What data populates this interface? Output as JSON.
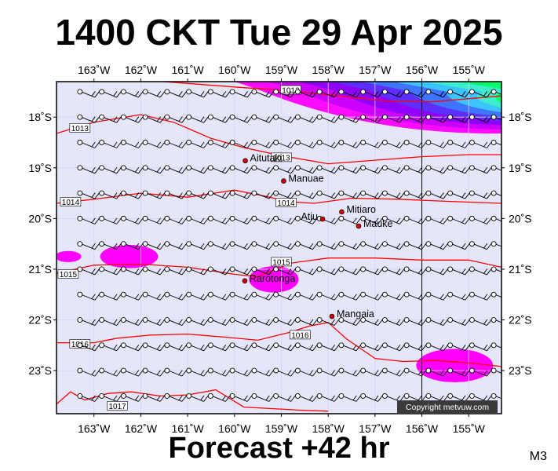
{
  "title": "1400 CKT Tue 29 Apr 2025",
  "footer": "Forecast +42 hr",
  "model_code": "M3",
  "copyright": "Copyright metvuw.com",
  "map": {
    "lon_min": -163.8,
    "lon_max": -154.3,
    "lat_min": -23.85,
    "lat_max": -17.3,
    "lon_ticks": [
      {
        "value": -163,
        "label": "163˚W"
      },
      {
        "value": -162,
        "label": "162˚W"
      },
      {
        "value": -161,
        "label": "161˚W"
      },
      {
        "value": -160,
        "label": "160˚W"
      },
      {
        "value": -159,
        "label": "159˚W"
      },
      {
        "value": -158,
        "label": "158˚W"
      },
      {
        "value": -157,
        "label": "157˚W"
      },
      {
        "value": -156,
        "label": "156˚W"
      },
      {
        "value": -155,
        "label": "155˚W"
      }
    ],
    "lat_ticks": [
      {
        "value": -18,
        "label": "18˚S"
      },
      {
        "value": -19,
        "label": "19˚S"
      },
      {
        "value": -20,
        "label": "20˚S"
      },
      {
        "value": -21,
        "label": "21˚S"
      },
      {
        "value": -22,
        "label": "22˚S"
      },
      {
        "value": -23,
        "label": "23˚S"
      }
    ],
    "reference_meridian": -156,
    "background_color": "#e6e6fa",
    "isobar_color": "#ff0000",
    "rain_color": "#ff00ff"
  },
  "places": [
    {
      "name": "Aitutaki",
      "lon": -159.77,
      "lat": -18.86,
      "label_side": "right"
    },
    {
      "name": "Manuae",
      "lon": -158.95,
      "lat": -19.26,
      "label_side": "right"
    },
    {
      "name": "Mitiaro",
      "lon": -157.71,
      "lat": -19.87,
      "label_side": "right"
    },
    {
      "name": "Atiu",
      "lon": -158.12,
      "lat": -20.01,
      "label_side": "left"
    },
    {
      "name": "Mauke",
      "lon": -157.35,
      "lat": -20.15,
      "label_side": "right"
    },
    {
      "name": "Rarotonga",
      "lon": -159.78,
      "lat": -21.23,
      "label_side": "right"
    },
    {
      "name": "Mangaia",
      "lon": -157.92,
      "lat": -21.93,
      "label_side": "right"
    }
  ],
  "isobars": [
    {
      "label": "1012",
      "label_at": [
        -158.8,
        -17.47
      ],
      "points": [
        [
          -161.8,
          -17.28
        ],
        [
          -160.8,
          -17.35
        ],
        [
          -159.8,
          -17.42
        ],
        [
          -158.8,
          -17.48
        ],
        [
          -157.8,
          -17.58
        ],
        [
          -156.8,
          -17.68
        ],
        [
          -155.8,
          -17.7
        ],
        [
          -154.8,
          -17.62
        ],
        [
          -154.3,
          -17.58
        ]
      ]
    },
    {
      "label": "1013",
      "label_at": [
        -163.3,
        -18.22
      ],
      "points": [
        [
          -163.8,
          -18.32
        ],
        [
          -163.0,
          -18.1
        ],
        [
          -162.0,
          -17.95
        ],
        [
          -161.3,
          -18.1
        ],
        [
          -160.5,
          -18.42
        ],
        [
          -159.8,
          -18.6
        ],
        [
          -159.0,
          -18.76
        ],
        [
          -158.0,
          -18.92
        ],
        [
          -157.0,
          -18.85
        ],
        [
          -156.0,
          -18.78
        ],
        [
          -155.0,
          -18.74
        ],
        [
          -154.3,
          -18.74
        ]
      ]
    },
    {
      "label": "1013",
      "label_at": [
        -159.0,
        -18.8
      ],
      "points": []
    },
    {
      "label": "1014",
      "label_at": [
        -163.5,
        -19.68
      ],
      "points": [
        [
          -163.8,
          -19.7
        ],
        [
          -163.0,
          -19.62
        ],
        [
          -162.0,
          -19.5
        ],
        [
          -161.0,
          -19.58
        ],
        [
          -160.0,
          -19.44
        ],
        [
          -159.5,
          -19.53
        ],
        [
          -158.8,
          -19.67
        ],
        [
          -158.3,
          -19.7
        ],
        [
          -157.5,
          -19.6
        ],
        [
          -156.5,
          -19.62
        ],
        [
          -155.5,
          -19.66
        ],
        [
          -154.3,
          -19.7
        ]
      ]
    },
    {
      "label": "1014",
      "label_at": [
        -158.9,
        -19.69
      ],
      "points": []
    },
    {
      "label": "1015",
      "label_at": [
        -163.55,
        -21.1
      ],
      "points": [
        [
          -163.8,
          -21.08
        ],
        [
          -163.0,
          -20.92
        ],
        [
          -162.0,
          -20.9
        ],
        [
          -161.0,
          -20.96
        ],
        [
          -160.0,
          -21.1
        ],
        [
          -159.5,
          -21.15
        ],
        [
          -158.8,
          -20.88
        ],
        [
          -158.0,
          -20.78
        ],
        [
          -157.0,
          -20.78
        ],
        [
          -156.0,
          -20.82
        ],
        [
          -155.0,
          -20.82
        ],
        [
          -154.3,
          -20.96
        ]
      ]
    },
    {
      "label": "1015",
      "label_at": [
        -159.0,
        -20.86
      ],
      "points": []
    },
    {
      "label": "1016",
      "label_at": [
        -163.3,
        -22.48
      ],
      "points": [
        [
          -163.8,
          -22.45
        ],
        [
          -163.0,
          -22.45
        ],
        [
          -162.5,
          -22.36
        ],
        [
          -161.8,
          -22.3
        ],
        [
          -161.0,
          -22.28
        ],
        [
          -160.2,
          -22.34
        ],
        [
          -159.5,
          -22.4
        ],
        [
          -158.8,
          -22.24
        ],
        [
          -158.4,
          -22.12
        ],
        [
          -158.0,
          -22.05
        ],
        [
          -157.6,
          -22.38
        ],
        [
          -157.0,
          -22.76
        ],
        [
          -156.4,
          -22.82
        ],
        [
          -155.7,
          -22.8
        ],
        [
          -155.0,
          -22.85
        ],
        [
          -154.3,
          -22.92
        ]
      ]
    },
    {
      "label": "1016",
      "label_at": [
        -158.6,
        -22.3
      ],
      "points": []
    },
    {
      "label": "1017",
      "label_at": [
        -162.5,
        -23.7
      ],
      "points": [
        [
          -163.8,
          -23.66
        ],
        [
          -163.5,
          -23.42
        ],
        [
          -163.2,
          -23.58
        ],
        [
          -162.7,
          -23.45
        ],
        [
          -162.2,
          -23.42
        ],
        [
          -161.6,
          -23.5
        ],
        [
          -161.0,
          -23.48
        ],
        [
          -160.4,
          -23.38
        ],
        [
          -159.8,
          -23.72
        ],
        [
          -159.2,
          -23.75
        ],
        [
          -158.6,
          -23.78
        ],
        [
          -158.0,
          -23.8
        ]
      ]
    }
  ],
  "rain_areas": [
    {
      "lon": -163.55,
      "lat": -20.75,
      "rx": 0.28,
      "ry": 0.11
    },
    {
      "lon": -162.25,
      "lat": -20.75,
      "rx": 0.62,
      "ry": 0.23
    },
    {
      "lon": -159.16,
      "lat": -21.2,
      "rx": 0.53,
      "ry": 0.26
    },
    {
      "lon": -155.3,
      "lat": -22.9,
      "rx": 0.82,
      "ry": 0.33
    }
  ],
  "rain_band_colors": [
    "#ff00ff",
    "#c800ff",
    "#8c00ff",
    "#5a32ff",
    "#3c78ff",
    "#3cc8ff",
    "#3cf0c8",
    "#00ff64"
  ],
  "wind_barbs": {
    "lon_start": -163.3,
    "lon_step": 0.465,
    "lat_start": -17.5,
    "lat_step": 0.5,
    "cols": 20,
    "rows": 13,
    "color": "#000000"
  }
}
